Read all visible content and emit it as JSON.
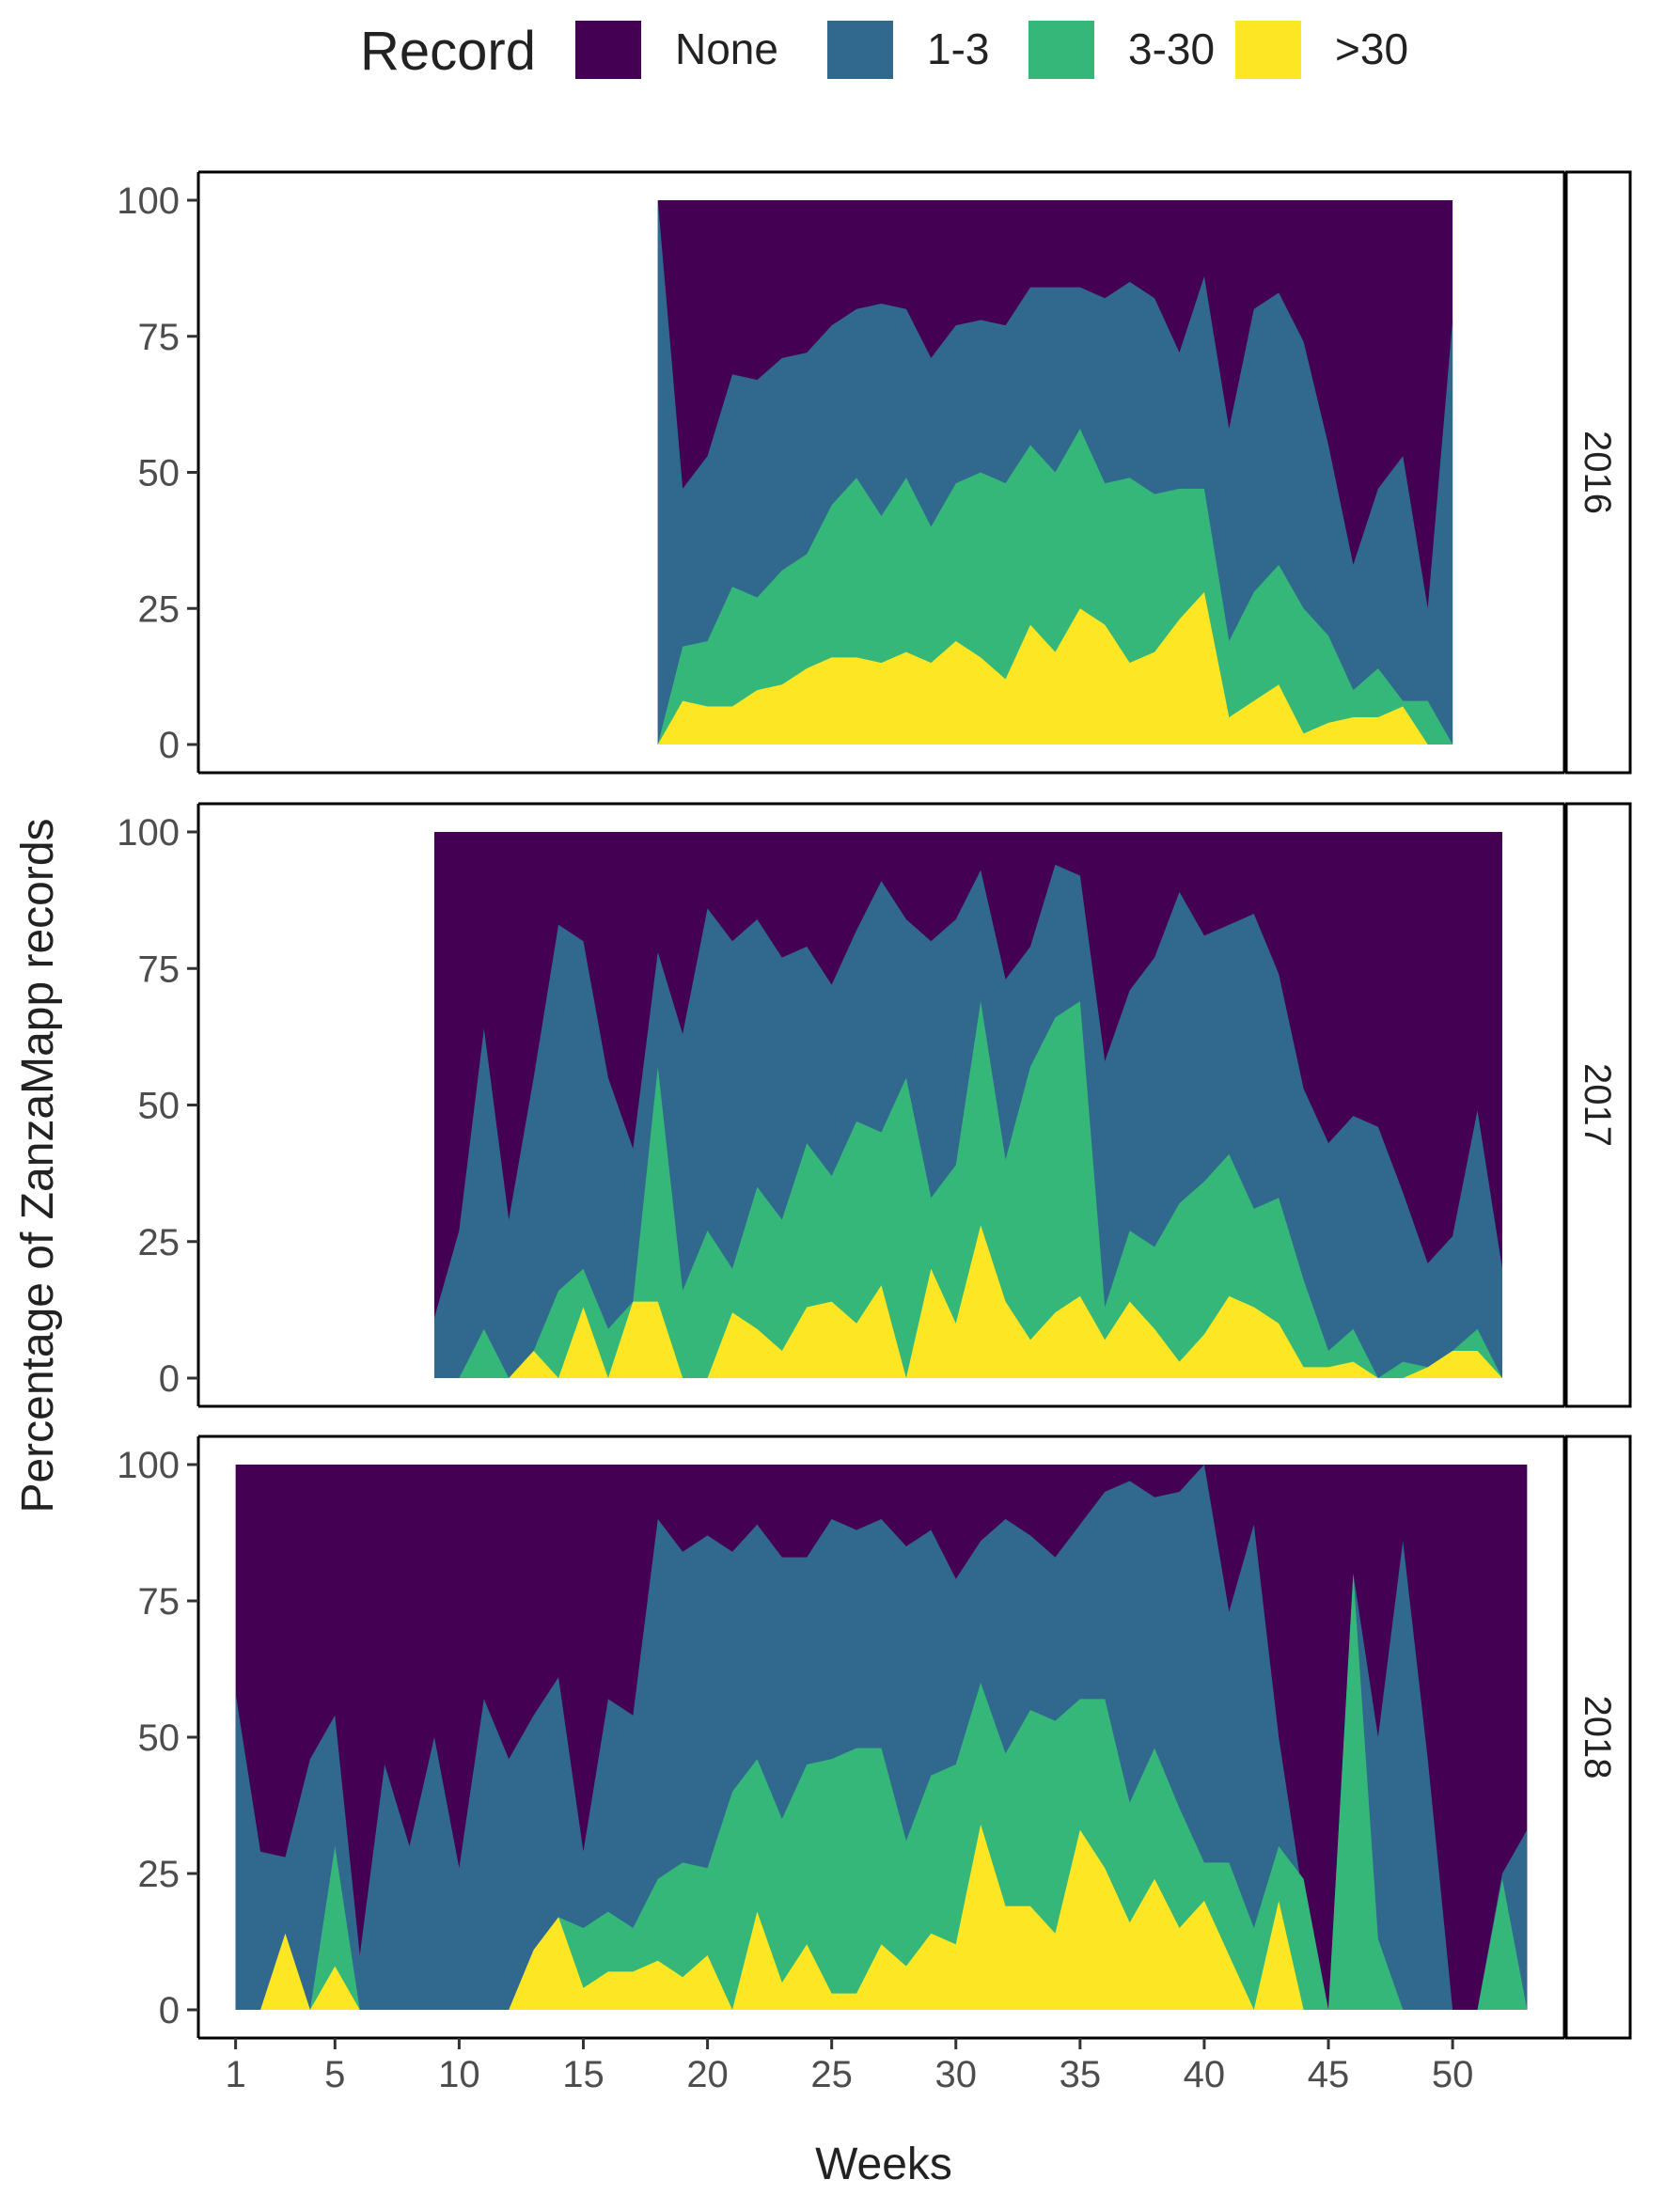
{
  "legend": {
    "title": "Record",
    "items": [
      {
        "key": "none",
        "label": "None",
        "color": "#440154"
      },
      {
        "key": "r1_3",
        "label": "1-3",
        "color": "#31688E"
      },
      {
        "key": "r3_30",
        "label": "3-30",
        "color": "#35B779"
      },
      {
        "key": "r30",
        "label": ">30",
        "color": "#FDE725"
      }
    ]
  },
  "chart_data": {
    "type": "area",
    "stacking": "percent",
    "xlabel": "Weeks",
    "ylabel": "Percentage of ZanzaMapp records",
    "xlim": [
      -0.5,
      54.5
    ],
    "ylim": [
      0,
      100
    ],
    "x_ticks": [
      1,
      5,
      10,
      15,
      20,
      25,
      30,
      35,
      40,
      45,
      50
    ],
    "y_ticks": [
      0,
      25,
      50,
      75,
      100
    ],
    "legend_position": "top",
    "panels": [
      {
        "label": "2016",
        "start_week": 18,
        "r30": [
          0,
          8,
          7,
          7,
          10,
          11,
          14,
          16,
          16,
          15,
          17,
          15,
          19,
          16,
          12,
          22,
          17,
          25,
          22,
          15,
          17,
          23,
          28,
          5,
          8,
          11,
          2,
          4,
          5,
          5,
          7,
          0,
          0
        ],
        "r3_30": [
          0,
          18,
          19,
          29,
          27,
          32,
          35,
          44,
          49,
          42,
          49,
          40,
          48,
          50,
          48,
          55,
          50,
          58,
          48,
          49,
          46,
          47,
          47,
          19,
          28,
          33,
          25,
          20,
          10,
          14,
          8,
          8,
          0
        ],
        "r1_3": [
          100,
          47,
          53,
          68,
          67,
          71,
          72,
          77,
          80,
          81,
          80,
          71,
          77,
          78,
          77,
          84,
          84,
          84,
          82,
          85,
          82,
          72,
          86,
          58,
          80,
          83,
          74,
          55,
          33,
          47,
          53,
          25,
          78
        ]
      },
      {
        "label": "2017",
        "start_week": 9,
        "r30": [
          0,
          0,
          0,
          0,
          5,
          0,
          13,
          0,
          14,
          14,
          0,
          0,
          12,
          9,
          5,
          13,
          14,
          10,
          17,
          0,
          20,
          10,
          28,
          14,
          7,
          12,
          15,
          7,
          14,
          9,
          3,
          8,
          15,
          13,
          10,
          2,
          2,
          3,
          0,
          0,
          2,
          5,
          5,
          0
        ],
        "r3_30": [
          0,
          0,
          9,
          0,
          5,
          16,
          20,
          9,
          14,
          57,
          16,
          27,
          20,
          35,
          29,
          43,
          37,
          47,
          45,
          55,
          33,
          39,
          69,
          40,
          57,
          66,
          69,
          13,
          27,
          24,
          32,
          36,
          41,
          31,
          33,
          18,
          5,
          9,
          0,
          3,
          2,
          5,
          9,
          0
        ],
        "r1_3": [
          11,
          27,
          64,
          29,
          55,
          83,
          80,
          55,
          42,
          78,
          63,
          86,
          80,
          84,
          77,
          79,
          72,
          82,
          91,
          84,
          80,
          84,
          93,
          73,
          79,
          94,
          92,
          58,
          71,
          77,
          89,
          81,
          83,
          85,
          74,
          53,
          43,
          48,
          46,
          34,
          21,
          26,
          49,
          20
        ]
      },
      {
        "label": "2018",
        "start_week": 1,
        "r30": [
          0,
          0,
          14,
          0,
          8,
          0,
          0,
          0,
          0,
          0,
          0,
          0,
          11,
          17,
          4,
          7,
          7,
          9,
          6,
          10,
          0,
          18,
          5,
          12,
          3,
          3,
          12,
          8,
          14,
          12,
          34,
          19,
          19,
          14,
          33,
          26,
          16,
          24,
          15,
          20,
          10,
          0,
          20,
          0,
          0,
          0,
          0,
          0,
          0,
          0,
          0,
          0,
          0
        ],
        "r3_30": [
          0,
          0,
          0,
          0,
          30,
          0,
          0,
          0,
          0,
          0,
          0,
          0,
          11,
          17,
          15,
          18,
          15,
          24,
          27,
          26,
          40,
          46,
          35,
          45,
          46,
          48,
          48,
          31,
          43,
          45,
          60,
          47,
          55,
          53,
          57,
          57,
          38,
          48,
          37,
          27,
          27,
          15,
          30,
          24,
          0,
          80,
          13,
          0,
          0,
          0,
          0,
          24,
          0
        ],
        "r1_3": [
          58,
          29,
          28,
          46,
          54,
          10,
          45,
          30,
          50,
          26,
          57,
          46,
          54,
          61,
          29,
          57,
          54,
          90,
          84,
          87,
          84,
          89,
          83,
          83,
          90,
          88,
          90,
          85,
          88,
          79,
          86,
          90,
          87,
          83,
          89,
          95,
          97,
          94,
          95,
          100,
          73,
          89,
          50,
          20,
          0,
          80,
          50,
          86,
          46,
          0,
          0,
          25,
          33
        ]
      }
    ]
  }
}
